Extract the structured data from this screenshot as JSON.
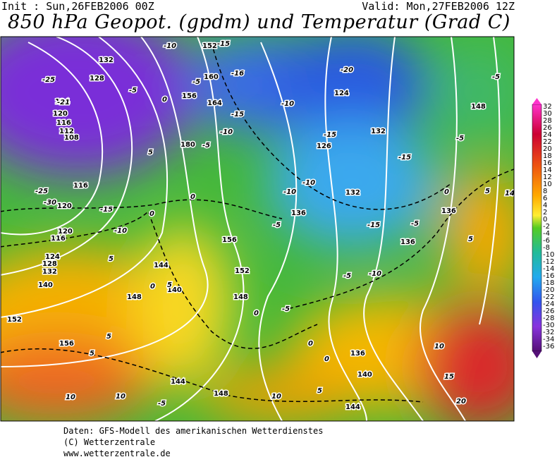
{
  "header": {
    "init": "Init : Sun,26FEB2006 00Z",
    "valid": "Valid: Mon,27FEB2006 12Z",
    "title": "850 hPa Geopot. (gpdm) und Temperatur (Grad C)"
  },
  "map": {
    "height_labels": [
      132,
      152,
      128,
      124,
      120,
      116,
      112,
      108,
      160,
      156,
      164,
      180,
      124,
      132,
      126,
      132,
      136,
      136,
      136,
      148,
      156,
      152,
      148,
      144,
      148,
      140,
      152,
      156,
      136,
      140,
      144,
      148,
      144,
      116,
      120,
      120,
      116,
      124,
      128,
      132,
      140
    ],
    "temperature_labels": [
      -25,
      -21,
      -25,
      -30,
      -15,
      -10,
      -10,
      -15,
      -5,
      -5,
      -16,
      -10,
      -15,
      -10,
      -5,
      -20,
      -15,
      -15,
      -5,
      -5,
      0,
      5,
      14,
      -10,
      -10,
      -5,
      -15,
      -5,
      -10,
      -5,
      -5,
      0,
      0,
      0,
      0,
      5,
      0,
      5,
      5,
      5,
      10,
      15,
      20,
      10,
      10,
      10,
      -5,
      5,
      5,
      0,
      5,
      0
    ]
  },
  "legend": {
    "labels": [
      32,
      30,
      28,
      26,
      24,
      22,
      20,
      18,
      16,
      14,
      12,
      10,
      8,
      6,
      4,
      2,
      0,
      -2,
      -4,
      -6,
      -8,
      -10,
      -12,
      -14,
      -16,
      -18,
      -20,
      -22,
      -24,
      -26,
      -28,
      -30,
      -32,
      -34,
      -36
    ]
  },
  "footer": {
    "lines": [
      "Daten: GFS-Modell des amerikanischen Wetterdienstes",
      "(C) Wetterzentrale",
      "www.wetterzentrale.de"
    ]
  }
}
